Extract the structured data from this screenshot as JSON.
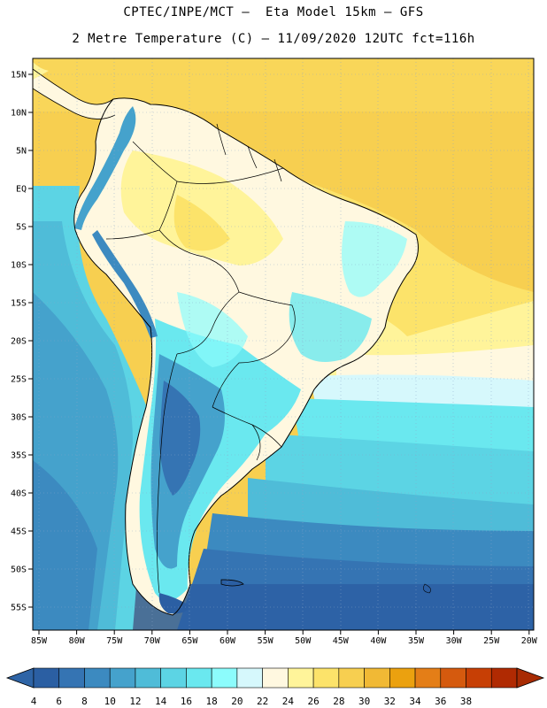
{
  "header": {
    "line1": "CPTEC/INPE/MCT –  Eta Model 15km – GFS",
    "line2": "2 Metre Temperature (C) – 11/09/2020 12UTC fct=116h"
  },
  "map": {
    "lat_labels": [
      "15N",
      "10N",
      "5N",
      "EQ",
      "5S",
      "10S",
      "15S",
      "20S",
      "25S",
      "30S",
      "35S",
      "40S",
      "45S",
      "50S",
      "55S"
    ],
    "lon_labels": [
      "85W",
      "80W",
      "75W",
      "70W",
      "65W",
      "60W",
      "55W",
      "50W",
      "45W",
      "40W",
      "35W",
      "30W",
      "25W",
      "20W"
    ]
  },
  "colorbar": {
    "values": [
      "4",
      "6",
      "8",
      "10",
      "12",
      "14",
      "16",
      "18",
      "20",
      "22",
      "24",
      "26",
      "28",
      "30",
      "32",
      "34",
      "36",
      "38"
    ],
    "colors": [
      "#2b5fa3",
      "#3574b3",
      "#3c8ac0",
      "#45a2cc",
      "#4fbcd8",
      "#5cd4e4",
      "#6ae8ef",
      "#8cfcfc",
      "#d6f8fc",
      "#fff8e0",
      "#fff49a",
      "#fce36a",
      "#f7cf50",
      "#f1b935",
      "#eba10f",
      "#e47e17",
      "#d55a0e",
      "#c73f05",
      "#b02a02"
    ],
    "under_color": "#2e64a6",
    "over_color": "#a82b03"
  }
}
